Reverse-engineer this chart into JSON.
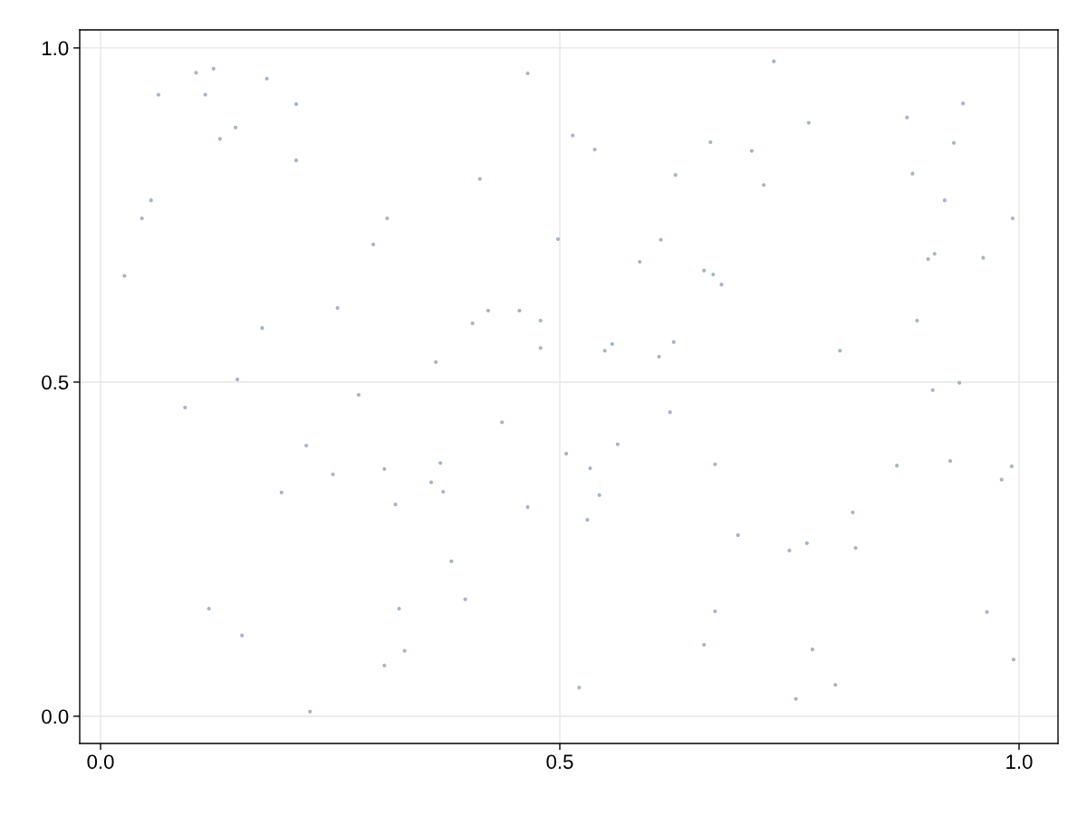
{
  "chart_data": {
    "type": "scatter",
    "xlim": [
      -0.0227,
      1.0424
    ],
    "ylim": [
      -0.0407,
      1.027
    ],
    "xticks": [
      {
        "value": 0,
        "label": "0.0"
      },
      {
        "value": 0.5,
        "label": "0.5"
      },
      {
        "value": 1,
        "label": "1.0"
      }
    ],
    "yticks": [
      {
        "value": 0,
        "label": "0.0"
      },
      {
        "value": 0.5,
        "label": "0.5"
      },
      {
        "value": 1,
        "label": "1.0"
      }
    ],
    "grid": true,
    "marker": "circle",
    "series": [
      {
        "color": "#a0b4cf",
        "x": [
          0.026,
          0.045,
          0.055,
          0.063,
          0.092,
          0.104,
          0.114,
          0.118,
          0.123,
          0.13,
          0.147,
          0.149,
          0.154,
          0.176,
          0.181,
          0.197,
          0.213,
          0.213,
          0.224,
          0.228,
          0.253,
          0.258,
          0.281,
          0.297,
          0.309,
          0.309,
          0.312,
          0.321,
          0.325,
          0.331,
          0.36,
          0.365,
          0.37,
          0.373,
          0.382,
          0.397,
          0.405,
          0.413,
          0.422,
          0.437,
          0.456,
          0.465,
          0.465,
          0.479,
          0.479,
          0.498,
          0.507,
          0.514,
          0.521,
          0.53,
          0.533,
          0.538,
          0.543,
          0.549,
          0.557,
          0.563,
          0.587,
          0.608,
          0.61,
          0.62,
          0.624,
          0.626,
          0.657,
          0.657,
          0.664,
          0.667,
          0.669,
          0.669,
          0.676,
          0.694,
          0.709,
          0.722,
          0.733,
          0.75,
          0.757,
          0.769,
          0.771,
          0.775,
          0.8,
          0.805,
          0.819,
          0.822,
          0.867,
          0.878,
          0.884,
          0.889,
          0.901,
          0.906,
          0.908,
          0.919,
          0.925,
          0.929,
          0.935,
          0.939,
          0.961,
          0.965,
          0.981,
          0.992,
          0.993,
          0.994
        ],
        "values": [
          0.659,
          0.745,
          0.772,
          0.93,
          0.462,
          0.963,
          0.93,
          0.161,
          0.969,
          0.864,
          0.881,
          0.504,
          0.121,
          0.581,
          0.954,
          0.335,
          0.916,
          0.832,
          0.405,
          0.007,
          0.362,
          0.611,
          0.481,
          0.706,
          0.37,
          0.076,
          0.745,
          0.317,
          0.161,
          0.098,
          0.35,
          0.53,
          0.379,
          0.336,
          0.232,
          0.175,
          0.588,
          0.804,
          0.607,
          0.44,
          0.607,
          0.962,
          0.313,
          0.592,
          0.551,
          0.714,
          0.393,
          0.869,
          0.043,
          0.294,
          0.371,
          0.848,
          0.331,
          0.547,
          0.557,
          0.407,
          0.68,
          0.538,
          0.713,
          0.455,
          0.56,
          0.81,
          0.667,
          0.107,
          0.859,
          0.661,
          0.377,
          0.157,
          0.646,
          0.271,
          0.846,
          0.795,
          0.98,
          0.248,
          0.026,
          0.259,
          0.888,
          0.1,
          0.047,
          0.547,
          0.305,
          0.252,
          0.375,
          0.896,
          0.812,
          0.592,
          0.684,
          0.488,
          0.692,
          0.772,
          0.382,
          0.858,
          0.499,
          0.917,
          0.686,
          0.156,
          0.354,
          0.374,
          0.745,
          0.085
        ]
      }
    ]
  }
}
